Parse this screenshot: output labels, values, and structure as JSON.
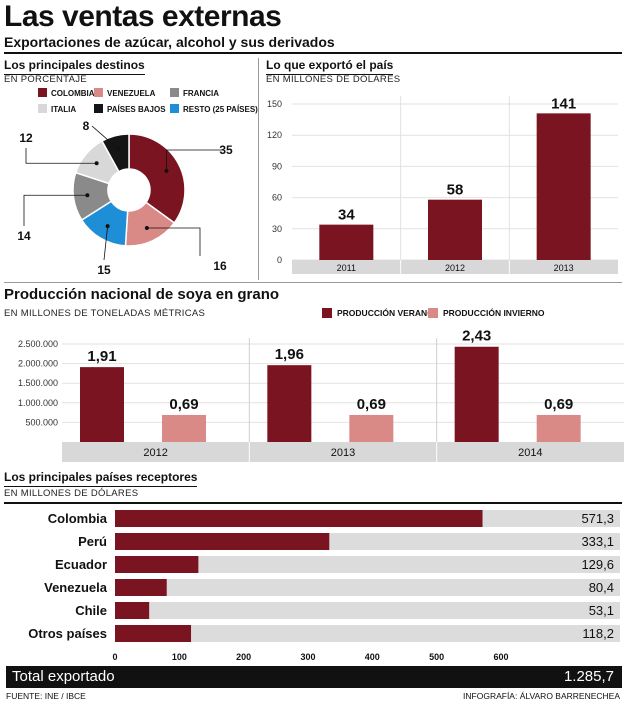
{
  "header": {
    "title": "Las ventas externas",
    "subtitle": "Exportaciones de azúcar, alcohol y sus derivados"
  },
  "colors": {
    "dark_red": "#7a1420",
    "salmon": "#d98a86",
    "gray": "#8a8a8a",
    "light_gray": "#d8d8d8",
    "black": "#151515",
    "blue": "#1e8fd6",
    "bar_track": "#dcdcdc"
  },
  "destinos": {
    "title": "Los principales destinos",
    "subtitle": "EN PORCENTAJE",
    "legend": [
      "COLOMBIA",
      "VENEZUELA",
      "FRANCIA",
      "ITALIA",
      "PAÍSES BAJOS",
      "RESTO (25 PAÍSES)"
    ]
  },
  "exporto": {
    "title": "Lo que exportó el país",
    "subtitle": "EN MILLONES DE DÓLARES"
  },
  "soya": {
    "title": "Producción nacional de soya en grano",
    "subtitle": "EN MILLONES  DE TONELADAS MÉTRICAS",
    "legend": [
      "PRODUCCIÓN VERANO",
      "PRODUCCIÓN INVIERNO"
    ]
  },
  "receptores": {
    "title": "Los principales países receptores",
    "subtitle": "EN MILLONES DE DÓLARES"
  },
  "total": {
    "label": "Total exportado",
    "value": "1.285,7"
  },
  "footer": {
    "source": "FUENTE: INE / IBCE",
    "credit": "INFOGRAFÍA: ÁLVARO  BARRENECHEA"
  },
  "chart_data": [
    {
      "type": "pie",
      "title": "Los principales destinos",
      "categories": [
        "COLOMBIA",
        "VENEZUELA",
        "RESTO (25 PAÍSES)",
        "FRANCIA",
        "ITALIA",
        "PAÍSES BAJOS"
      ],
      "values": [
        35,
        16,
        15,
        14,
        12,
        8
      ],
      "labels": [
        "35",
        "16",
        "15",
        "14",
        "12",
        "8"
      ],
      "colors": [
        "#7a1420",
        "#d98a86",
        "#1e8fd6",
        "#8a8a8a",
        "#d8d8d8",
        "#151515"
      ]
    },
    {
      "type": "bar",
      "title": "Lo que exportó el país",
      "categories": [
        "2011",
        "2012",
        "2013"
      ],
      "values": [
        34,
        58,
        141
      ],
      "labels": [
        "34",
        "58",
        "141"
      ],
      "ylim": [
        0,
        150
      ],
      "yticks": [
        "0",
        "30",
        "60",
        "90",
        "120",
        "150"
      ],
      "grid": true
    },
    {
      "type": "bar",
      "title": "Producción nacional de soya en grano",
      "categories": [
        "2012",
        "2013",
        "2014"
      ],
      "series": [
        {
          "name": "PRODUCCIÓN VERANO",
          "values": [
            1.91,
            1.96,
            2.43
          ],
          "labels": [
            "1,91",
            "1,96",
            "2,43"
          ]
        },
        {
          "name": "PRODUCCIÓN INVIERNO",
          "values": [
            0.69,
            0.69,
            0.69
          ],
          "labels": [
            "0,69",
            "0,69",
            "0,69"
          ]
        }
      ],
      "ylim": [
        0,
        2500000
      ],
      "yticks": [
        "500.000",
        "1.000.000",
        "1.500.000",
        "2.000.000",
        "2.500.000"
      ],
      "grid": true
    },
    {
      "type": "bar",
      "orientation": "horizontal",
      "title": "Los principales países receptores",
      "categories": [
        "Colombia",
        "Perú",
        "Ecuador",
        "Venezuela",
        "Chile",
        "Otros países"
      ],
      "values": [
        571.3,
        333.1,
        129.6,
        80.4,
        53.1,
        118.2
      ],
      "labels": [
        "571,3",
        "333,1",
        "129,6",
        "80,4",
        "53,1",
        "118,2"
      ],
      "xlim": [
        0,
        785
      ],
      "xticks": [
        "0",
        "100",
        "200",
        "300",
        "400",
        "500",
        "600"
      ]
    }
  ]
}
